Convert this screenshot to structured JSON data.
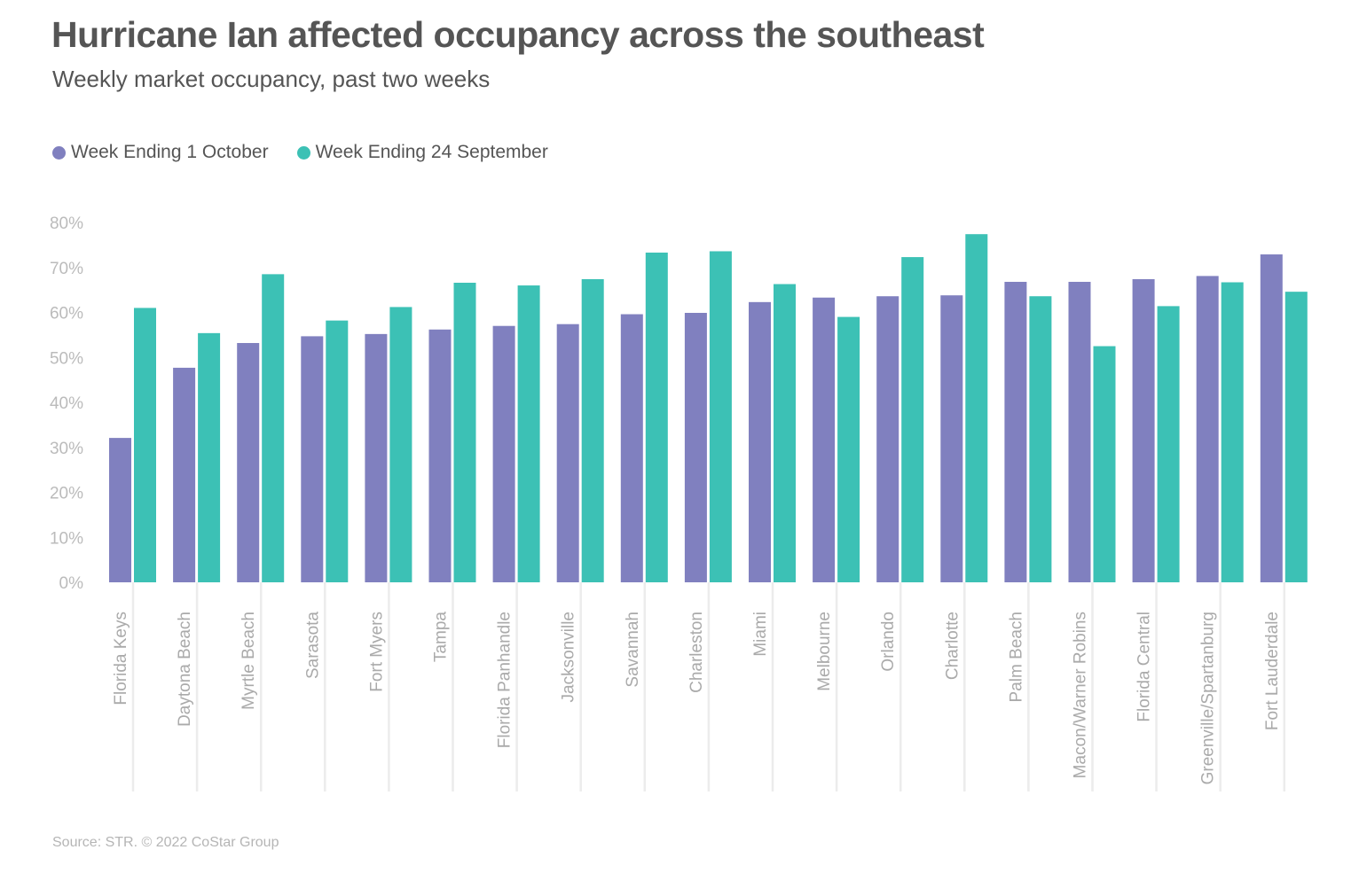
{
  "header": {
    "title": "Hurricane Ian affected occupancy across the southeast",
    "subtitle": "Weekly market occupancy, past two weeks"
  },
  "legend": {
    "series1": "Week Ending 1 October",
    "series2": "Week Ending 24 September"
  },
  "colors": {
    "series1": "#8080bf",
    "series2": "#3cc1b5",
    "gridline": "#ececec",
    "tick": "#bbbbbb",
    "category_label": "#aaaaaa"
  },
  "footer": {
    "source": "Source: STR. © 2022 CoStar Group"
  },
  "chart_data": {
    "type": "bar",
    "title": "Hurricane Ian affected occupancy across the southeast",
    "subtitle": "Weekly market occupancy, past two weeks",
    "xlabel": "",
    "ylabel": "",
    "ylim": [
      0,
      80
    ],
    "yticks": [
      0,
      10,
      20,
      30,
      40,
      50,
      60,
      70,
      80
    ],
    "ytick_suffix": "%",
    "legend_position": "top-left",
    "categories": [
      "Florida Keys",
      "Daytona Beach",
      "Myrtle Beach",
      "Sarasota",
      "Fort Myers",
      "Tampa",
      "Florida Panhandle",
      "Jacksonville",
      "Savannah",
      "Charleston",
      "Miami",
      "Melbourne",
      "Orlando",
      "Charlotte",
      "Palm Beach",
      "Macon/Warner Robins",
      "Florida Central",
      "Greenville/Spartanburg",
      "Fort Lauderdale"
    ],
    "series": [
      {
        "name": "Week Ending 1 October",
        "values": [
          32.1,
          47.7,
          53.2,
          54.7,
          55.2,
          56.2,
          57.0,
          57.4,
          59.6,
          59.9,
          62.3,
          63.3,
          63.6,
          63.8,
          66.8,
          66.8,
          67.4,
          68.1,
          72.9
        ]
      },
      {
        "name": "Week Ending 24 September",
        "values": [
          61.0,
          55.4,
          68.5,
          58.2,
          61.2,
          66.6,
          66.0,
          67.4,
          73.3,
          73.6,
          66.3,
          59.0,
          72.3,
          77.4,
          63.6,
          52.5,
          61.4,
          66.7,
          64.6
        ]
      }
    ]
  }
}
